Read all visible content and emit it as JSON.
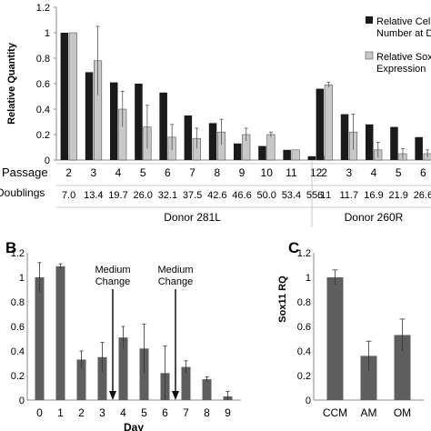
{
  "chart_data": [
    {
      "panel": "A",
      "type": "bar",
      "ylabel": "Relative Quantity",
      "ylim": [
        0,
        1.2
      ],
      "yticks": [
        "0",
        "0.2",
        "0.4",
        "0.6",
        "0.8",
        "1",
        "1.2"
      ],
      "legend": {
        "placement": "top-right",
        "entries": [
          "Relative Cell Number at Do",
          "Relative Sox Expression"
        ]
      },
      "row_labels": {
        "passage": "Passage",
        "doublings": "n Doublings"
      },
      "groups": [
        {
          "donor": "Donor 281L",
          "passage": [
            "2",
            "3",
            "4",
            "5",
            "6",
            "7",
            "8",
            "9",
            "10",
            "11",
            "12"
          ],
          "doublings": [
            "7.0",
            "13.4",
            "19.7",
            "26.0",
            "32.1",
            "37.5",
            "42.6",
            "46.6",
            "50.0",
            "53.4",
            "55.1"
          ],
          "series": [
            {
              "name": "Relative Cell Number at Do",
              "values": [
                1.0,
                0.69,
                0.61,
                0.6,
                0.53,
                0.35,
                0.29,
                0.13,
                0.11,
                0.08,
                0.03
              ]
            },
            {
              "name": "Relative Sox Expression",
              "values": [
                1.0,
                0.78,
                0.4,
                0.26,
                0.18,
                0.17,
                0.22,
                0.2,
                0.2,
                0.08,
                0.03
              ],
              "errors": [
                0.0,
                0.27,
                0.14,
                0.17,
                0.1,
                0.08,
                0.1,
                0.05,
                0.02,
                0.0,
                0.0
              ]
            }
          ]
        },
        {
          "donor": "Donor 260R",
          "passage": [
            "2",
            "3",
            "4",
            "5",
            "6"
          ],
          "doublings": [
            "6.1",
            "11.7",
            "16.9",
            "21.9",
            "26.6"
          ],
          "series": [
            {
              "name": "Relative Cell Number at Do",
              "values": [
                0.56,
                0.36,
                0.28,
                0.26,
                0.18
              ]
            },
            {
              "name": "Relative Sox Expression",
              "values": [
                0.59,
                0.22,
                0.08,
                0.05,
                0.05
              ],
              "errors": [
                0.02,
                0.14,
                0.06,
                0.04,
                0.03
              ]
            }
          ]
        }
      ]
    },
    {
      "panel": "B",
      "type": "bar",
      "xlabel": "Day",
      "ylabel": "Sox11 RQ",
      "ylim": [
        0,
        1.2
      ],
      "yticks": [
        "0",
        "0.2",
        "0.4",
        "0.6",
        "0.8",
        "1",
        "1.2"
      ],
      "categories": [
        "0",
        "1",
        "2",
        "3",
        "4",
        "5",
        "6",
        "7",
        "8",
        "9"
      ],
      "values": [
        1.0,
        1.09,
        0.33,
        0.35,
        0.51,
        0.42,
        0.22,
        0.27,
        0.17,
        0.03
      ],
      "errors": [
        0.12,
        0.02,
        0.07,
        0.12,
        0.09,
        0.2,
        0.22,
        0.05,
        0.02,
        0.04
      ],
      "annotations": [
        {
          "text": [
            "Medium",
            "Change"
          ],
          "at_day": 3.5
        },
        {
          "text": [
            "Medium",
            "Change"
          ],
          "at_day": 6.5
        }
      ]
    },
    {
      "panel": "C",
      "type": "bar",
      "ylabel": "Sox11 RQ",
      "ylim": [
        0,
        1.2
      ],
      "yticks": [
        "0",
        "0.2",
        "0.4",
        "0.6",
        "0.8",
        "1",
        "1.2"
      ],
      "categories": [
        "CCM",
        "AM",
        "OM"
      ],
      "values": [
        1.0,
        0.36,
        0.53
      ],
      "errors": [
        0.06,
        0.12,
        0.13
      ]
    }
  ],
  "colors": {
    "dark_bar": "#1a1a1a",
    "light_bar": "#c8c8c8",
    "grey_bar": "#5e5e5e"
  },
  "panel_labels": {
    "b": "B",
    "c": "C"
  }
}
